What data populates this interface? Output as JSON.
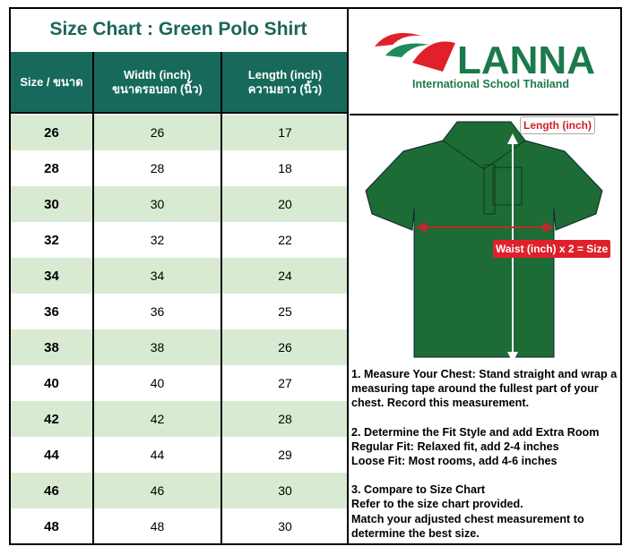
{
  "title": "Size Chart : Green Polo Shirt",
  "headers": {
    "size": "Size / ขนาด",
    "width_en": "Width (inch)",
    "width_th": "ขนาดรอบอก (นิ้ว)",
    "length_en": "Length (inch)",
    "length_th": "ความยาว (นิ้ว)"
  },
  "rows": [
    {
      "size": "26",
      "width": "26",
      "length": "17"
    },
    {
      "size": "28",
      "width": "28",
      "length": "18"
    },
    {
      "size": "30",
      "width": "30",
      "length": "20"
    },
    {
      "size": "32",
      "width": "32",
      "length": "22"
    },
    {
      "size": "34",
      "width": "34",
      "length": "24"
    },
    {
      "size": "36",
      "width": "36",
      "length": "25"
    },
    {
      "size": "38",
      "width": "38",
      "length": "26"
    },
    {
      "size": "40",
      "width": "40",
      "length": "27"
    },
    {
      "size": "42",
      "width": "42",
      "length": "28"
    },
    {
      "size": "44",
      "width": "44",
      "length": "29"
    },
    {
      "size": "46",
      "width": "46",
      "length": "30"
    },
    {
      "size": "48",
      "width": "48",
      "length": "30"
    }
  ],
  "logo": {
    "name": "LANNA",
    "subtitle": "International School Thailand"
  },
  "diagram": {
    "length_label": "Length (inch)",
    "waist_label": "Waist (inch) x 2 = Size"
  },
  "instructions": [
    [
      "1. Measure Your Chest: Stand straight and wrap a measuring tape around the fullest part of your chest. Record this measurement."
    ],
    [
      "2. Determine the Fit Style and add Extra Room",
      "Regular Fit: Relaxed fit, add 2-4 inches",
      "Loose Fit: Most rooms, add 4-6 inches"
    ],
    [
      "3. Compare to Size Chart",
      "Refer to the size chart provided.",
      "Match your adjusted chest measurement to determine the best size."
    ]
  ],
  "colors": {
    "header": "#176a5b",
    "row_alt": "#d9ead3",
    "shirt": "#1d6b35",
    "accent": "#e0202a"
  }
}
